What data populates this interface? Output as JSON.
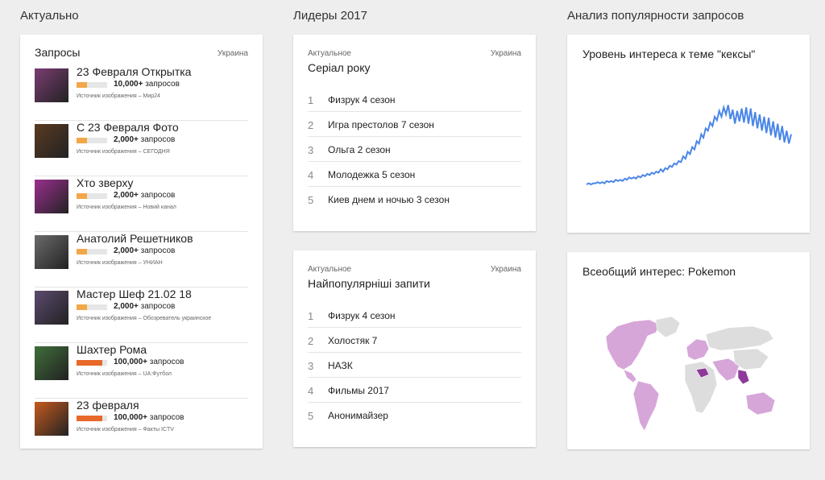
{
  "columns": {
    "trending": "Актуально",
    "leaders": "Лидеры 2017",
    "analysis": "Анализ популярности запросов"
  },
  "trending": {
    "header": "Запросы",
    "region": "Украина",
    "items": [
      {
        "title": "23 Февраля Открытка",
        "count": "10,000+",
        "unit": "запросов",
        "source": "Источник изображения – Мир24",
        "level": 0.33,
        "color": "#f2a749"
      },
      {
        "title": "С 23 Февраля Фото",
        "count": "2,000+",
        "unit": "запросов",
        "source": "Источник изображения – СЕГОДНЯ",
        "level": 0.33,
        "color": "#f2a749"
      },
      {
        "title": "Хто зверху",
        "count": "2,000+",
        "unit": "запросов",
        "source": "Источник изображения – Новий канал",
        "level": 0.33,
        "color": "#f2a749"
      },
      {
        "title": "Анатолий Решетников",
        "count": "2,000+",
        "unit": "запросов",
        "source": "Источник изображения – УНИАН",
        "level": 0.33,
        "color": "#f2a749"
      },
      {
        "title": "Мастер Шеф 21.02 18",
        "count": "2,000+",
        "unit": "запросов",
        "source": "Источник изображения – Обозреватель украинское",
        "level": 0.33,
        "color": "#f2a749"
      },
      {
        "title": "Шахтер Рома",
        "count": "100,000+",
        "unit": "запросов",
        "source": "Источник изображения – UA:Футбол",
        "level": 0.85,
        "color": "#e8692a"
      },
      {
        "title": "23 февраля",
        "count": "100,000+",
        "unit": "запросов",
        "source": "Источник изображения – Факты ICTV",
        "level": 0.85,
        "color": "#e8692a"
      }
    ]
  },
  "series_of_year": {
    "sub": "Актуальное",
    "region": "Украина",
    "title": "Серіал року",
    "items": [
      {
        "n": "1",
        "label": "Физрук 4 сезон"
      },
      {
        "n": "2",
        "label": "Игра престолов 7 сезон"
      },
      {
        "n": "3",
        "label": "Ольга 2 сезон"
      },
      {
        "n": "4",
        "label": "Молодежка 5 сезон"
      },
      {
        "n": "5",
        "label": "Киев днем и ночью 3 сезон"
      }
    ]
  },
  "top_queries": {
    "sub": "Актуальное",
    "region": "Украина",
    "title": "Найпопулярніші запити",
    "items": [
      {
        "n": "1",
        "label": "Физрук 4 сезон"
      },
      {
        "n": "2",
        "label": "Холостяк 7"
      },
      {
        "n": "3",
        "label": "НАЗК"
      },
      {
        "n": "4",
        "label": "Фильмы 2017"
      },
      {
        "n": "5",
        "label": "Анонимайзер"
      }
    ]
  },
  "interest_chart": {
    "title": "Уровень интереса к теме \"кексы\"",
    "color": "#4a86e8",
    "chart_data": {
      "type": "line",
      "title": "Уровень интереса к теме \"кексы\"",
      "xlabel": "",
      "ylabel": "",
      "ylim": [
        0,
        100
      ],
      "grid": false,
      "series": [
        {
          "values": [
            20,
            21,
            20,
            21,
            21,
            22,
            21,
            22,
            21,
            23,
            22,
            23,
            22,
            24,
            23,
            24,
            23,
            25,
            24,
            26,
            25,
            26,
            25,
            27,
            26,
            28,
            27,
            29,
            28,
            30,
            29,
            31,
            30,
            33,
            31,
            34,
            33,
            36,
            35,
            38,
            37,
            40,
            39,
            44,
            42,
            48,
            46,
            52,
            50,
            57,
            55,
            63,
            60,
            68,
            66,
            73,
            70,
            78,
            75,
            83,
            78,
            86,
            80,
            88,
            76,
            84,
            72,
            83,
            74,
            85,
            73,
            86,
            72,
            85,
            70,
            82,
            68,
            80,
            66,
            78,
            64,
            77,
            62,
            74,
            60,
            72,
            58,
            70,
            56,
            66,
            55,
            63
          ]
        }
      ]
    }
  },
  "map_card": {
    "title": "Всеобщий интерес: Pokemon",
    "land_color": "#dddddd",
    "interest_color": "#d7a6d9",
    "high_color": "#8e3a9a"
  }
}
